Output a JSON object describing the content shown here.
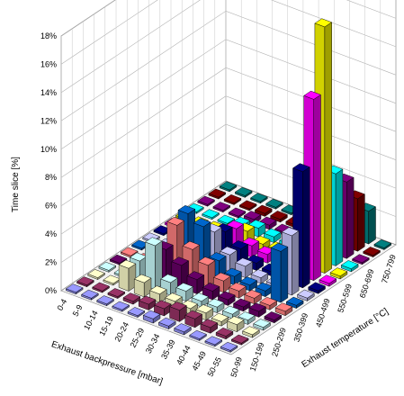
{
  "chart_data": {
    "type": "bar3d",
    "ylabel": "Time slice [%]",
    "xlabel": "Exhaust backpressure [mbar]",
    "zlabel": "Exhaust temperature [°C]",
    "ylim": [
      0,
      18
    ],
    "yticks": [
      "0%",
      "2%",
      "4%",
      "6%",
      "8%",
      "10%",
      "12%",
      "14%",
      "16%",
      "18%"
    ],
    "backpressure_categories": [
      "0-4",
      "5-9",
      "10-14",
      "15-19",
      "20-24",
      "25-29",
      "30-34",
      "35-39",
      "40-44",
      "45-49",
      "50-55"
    ],
    "temperature_categories": [
      "50-99",
      "150-199",
      "250-299",
      "350-399",
      "450-499",
      "550-599",
      "650-699",
      "750-799"
    ],
    "temperature_rows": [
      "50-99",
      "100-149",
      "150-199",
      "200-249",
      "250-299",
      "300-349",
      "350-399",
      "400-449",
      "450-499",
      "500-549",
      "550-599",
      "600-649",
      "650-699",
      "700-749",
      "750-799"
    ],
    "row_colors": [
      "#9999ff",
      "#993366",
      "#ffffcc",
      "#ccffff",
      "#660066",
      "#ff8080",
      "#0066cc",
      "#ccccff",
      "#000080",
      "#ff00ff",
      "#ffff00",
      "#00ffff",
      "#800080",
      "#800000",
      "#008080",
      "#0000ff"
    ],
    "values": [
      [
        0,
        0,
        0,
        0,
        0,
        0.3,
        0.2,
        0.2,
        0.1,
        0.1,
        0
      ],
      [
        0,
        0,
        0,
        0.2,
        0.4,
        0.5,
        0.8,
        0.6,
        0.4,
        0.2,
        0.1
      ],
      [
        0,
        0,
        1.6,
        1.0,
        0.6,
        0.5,
        0.4,
        0.5,
        0.3,
        0.5,
        0.2
      ],
      [
        0,
        0,
        1.6,
        3.1,
        0.9,
        0.7,
        0.4,
        0.4,
        0.3,
        0.3,
        0.2
      ],
      [
        0,
        0,
        0.4,
        2.3,
        1.6,
        1.0,
        0.6,
        0.4,
        0.3,
        0.4,
        0.2
      ],
      [
        0,
        0,
        0.5,
        3.5,
        2.2,
        1.5,
        0.8,
        0.5,
        0.4,
        0.3,
        0.3
      ],
      [
        0,
        0,
        0.4,
        3.8,
        3.3,
        1.3,
        0.6,
        0.4,
        0.4,
        3.6,
        0.2
      ],
      [
        0,
        0,
        0.4,
        1.5,
        2.4,
        1.2,
        0.8,
        0.4,
        0.3,
        4.2,
        0.2
      ],
      [
        0,
        0,
        0.2,
        0.8,
        1.9,
        1.1,
        0.5,
        0.3,
        1.2,
        8.2,
        0.2
      ],
      [
        0,
        0,
        0.2,
        0.6,
        1.6,
        0.8,
        0.6,
        0.4,
        1.0,
        12.8,
        0.2
      ],
      [
        0,
        0,
        0.2,
        0.5,
        0.9,
        0.4,
        0.4,
        0.4,
        0.8,
        17.4,
        0.2
      ],
      [
        0,
        0,
        0.1,
        0.4,
        0.6,
        0.4,
        0.3,
        0.2,
        0.5,
        6.5,
        0.2
      ],
      [
        0,
        0,
        0.1,
        0.3,
        0.3,
        0.2,
        0.1,
        0.1,
        0.3,
        5.4,
        0.1
      ],
      [
        0,
        0,
        0.1,
        0.2,
        0.2,
        0.2,
        0.1,
        0.1,
        0.2,
        3.7,
        0.1
      ],
      [
        0,
        0,
        0,
        0.1,
        0.1,
        0.1,
        0.1,
        0.1,
        0.2,
        2.3,
        0.1
      ]
    ],
    "grid": true,
    "legend": "none"
  }
}
